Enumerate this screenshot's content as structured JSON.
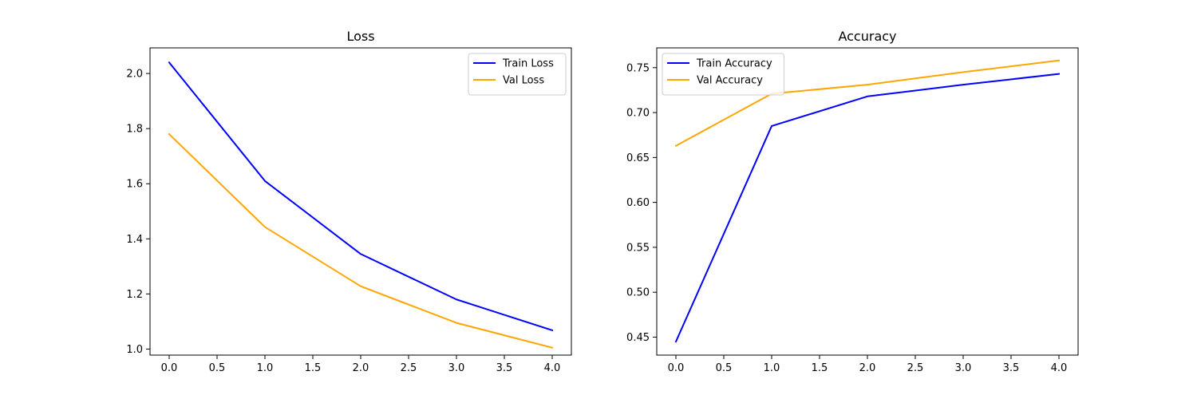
{
  "chart_data": [
    {
      "type": "line",
      "title": "Loss",
      "xlabel": "",
      "ylabel": "",
      "x": [
        0,
        1,
        2,
        3,
        4
      ],
      "xlim": [
        -0.2,
        4.2
      ],
      "ylim": [
        0.978,
        2.093
      ],
      "xticks": [
        "0.0",
        "0.5",
        "1.0",
        "1.5",
        "2.0",
        "2.5",
        "3.0",
        "3.5",
        "4.0"
      ],
      "yticks": [
        "1.0",
        "1.2",
        "1.4",
        "1.6",
        "1.8",
        "2.0"
      ],
      "grid": false,
      "legend_position": "top-right",
      "series": [
        {
          "name": "Train Loss",
          "color": "#0000ff",
          "values": [
            2.04,
            1.61,
            1.345,
            1.18,
            1.068
          ]
        },
        {
          "name": "Val Loss",
          "color": "#ffa500",
          "values": [
            1.78,
            1.443,
            1.228,
            1.095,
            1.005
          ]
        }
      ]
    },
    {
      "type": "line",
      "title": "Accuracy",
      "xlabel": "",
      "ylabel": "",
      "x": [
        0,
        1,
        2,
        3,
        4
      ],
      "xlim": [
        -0.2,
        4.2
      ],
      "ylim": [
        0.43,
        0.772
      ],
      "xticks": [
        "0.0",
        "0.5",
        "1.0",
        "1.5",
        "2.0",
        "2.5",
        "3.0",
        "3.5",
        "4.0"
      ],
      "yticks": [
        "0.45",
        "0.50",
        "0.55",
        "0.60",
        "0.65",
        "0.70",
        "0.75"
      ],
      "grid": false,
      "legend_position": "top-left",
      "series": [
        {
          "name": "Train Accuracy",
          "color": "#0000ff",
          "values": [
            0.445,
            0.685,
            0.718,
            0.731,
            0.743
          ]
        },
        {
          "name": "Val Accuracy",
          "color": "#ffa500",
          "values": [
            0.663,
            0.721,
            0.731,
            0.745,
            0.758
          ]
        }
      ]
    }
  ]
}
